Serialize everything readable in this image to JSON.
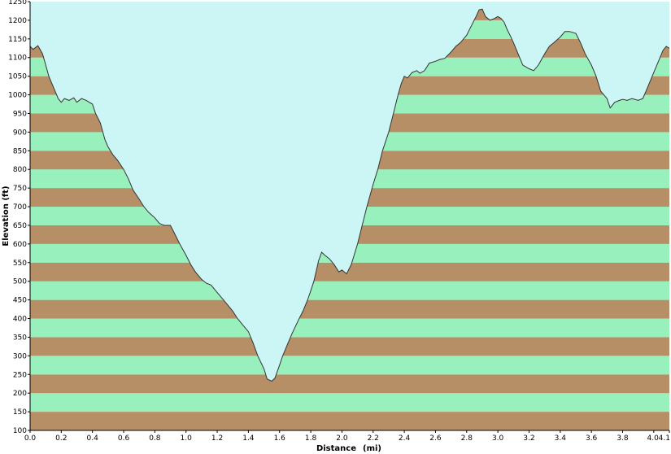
{
  "chart_data": {
    "type": "area",
    "title": "",
    "xlabel": "Distance",
    "xunit": "(mi)",
    "ylabel": "Elevation (ft)",
    "xlim": [
      0,
      4.1
    ],
    "ylim": [
      100,
      1250
    ],
    "x_ticks": [
      0,
      0.2,
      0.4,
      0.6,
      0.8,
      1.0,
      1.2,
      1.4,
      1.6,
      1.8,
      2.0,
      2.2,
      2.4,
      2.6,
      2.8,
      3.0,
      3.2,
      3.4,
      3.6,
      3.8,
      4.0,
      4.1
    ],
    "x_tick_labels": [
      "0.0",
      "0.2",
      "0.4",
      "0.6",
      "0.8",
      "1.0",
      "1.2",
      "1.4",
      "1.6",
      "1.8",
      "2.0",
      "2.2",
      "2.4",
      "2.6",
      "2.8",
      "3.0",
      "3.2",
      "3.4",
      "3.6",
      "3.8",
      "4.0",
      "4.1"
    ],
    "y_ticks": [
      100,
      150,
      200,
      250,
      300,
      350,
      400,
      450,
      500,
      550,
      600,
      650,
      700,
      750,
      800,
      850,
      900,
      950,
      1000,
      1050,
      1100,
      1150,
      1200,
      1250
    ],
    "y_tick_labels": [
      "100",
      "150",
      "200",
      "250",
      "300",
      "350",
      "400",
      "450",
      "500",
      "550",
      "600",
      "650",
      "700",
      "750",
      "800",
      "850",
      "900",
      "950",
      "1000",
      "1050",
      "1100",
      "1150",
      "1200",
      "1250"
    ],
    "grid": false,
    "colors": {
      "sky": "#ccf5f5",
      "band_light": "#98f0bc",
      "band_dark": "#b78f66",
      "line": "#333333"
    },
    "series": [
      {
        "x": [
          0.0,
          0.02,
          0.05,
          0.08,
          0.1,
          0.12,
          0.15,
          0.18,
          0.2,
          0.22,
          0.25,
          0.28,
          0.3,
          0.33,
          0.36,
          0.4,
          0.42,
          0.45,
          0.48,
          0.5,
          0.53,
          0.56,
          0.6,
          0.63,
          0.66,
          0.7,
          0.73,
          0.76,
          0.8,
          0.83,
          0.86,
          0.9,
          0.93,
          0.96,
          1.0,
          1.03,
          1.06,
          1.1,
          1.13,
          1.16,
          1.2,
          1.23,
          1.26,
          1.3,
          1.33,
          1.36,
          1.4,
          1.43,
          1.46,
          1.5,
          1.52,
          1.55,
          1.57,
          1.6,
          1.62,
          1.65,
          1.68,
          1.72,
          1.75,
          1.78,
          1.8,
          1.82,
          1.85,
          1.87,
          1.89,
          1.92,
          1.95,
          1.98,
          2.0,
          2.03,
          2.06,
          2.1,
          2.13,
          2.16,
          2.2,
          2.23,
          2.26,
          2.3,
          2.33,
          2.36,
          2.38,
          2.4,
          2.42,
          2.45,
          2.48,
          2.5,
          2.53,
          2.56,
          2.6,
          2.63,
          2.66,
          2.7,
          2.73,
          2.76,
          2.8,
          2.83,
          2.86,
          2.88,
          2.9,
          2.92,
          2.95,
          2.98,
          3.0,
          3.02,
          3.04,
          3.06,
          3.08,
          3.1,
          3.13,
          3.16,
          3.2,
          3.23,
          3.26,
          3.3,
          3.33,
          3.36,
          3.4,
          3.43,
          3.46,
          3.5,
          3.53,
          3.56,
          3.6,
          3.63,
          3.66,
          3.7,
          3.72,
          3.75,
          3.78,
          3.8,
          3.83,
          3.86,
          3.9,
          3.93,
          3.96,
          4.0,
          4.03,
          4.06,
          4.08,
          4.1
        ],
        "y": [
          1130,
          1122,
          1132,
          1110,
          1080,
          1050,
          1020,
          990,
          980,
          990,
          985,
          992,
          980,
          990,
          985,
          975,
          950,
          925,
          880,
          860,
          840,
          825,
          800,
          775,
          745,
          720,
          700,
          685,
          670,
          655,
          650,
          650,
          625,
          600,
          570,
          545,
          525,
          505,
          495,
          490,
          470,
          455,
          440,
          420,
          400,
          385,
          365,
          335,
          300,
          265,
          238,
          232,
          240,
          275,
          300,
          330,
          360,
          395,
          420,
          450,
          475,
          500,
          555,
          578,
          570,
          560,
          545,
          525,
          530,
          520,
          545,
          600,
          650,
          700,
          760,
          800,
          850,
          900,
          950,
          1000,
          1030,
          1050,
          1045,
          1060,
          1065,
          1058,
          1065,
          1085,
          1090,
          1095,
          1098,
          1115,
          1130,
          1140,
          1160,
          1185,
          1210,
          1228,
          1230,
          1210,
          1200,
          1205,
          1210,
          1205,
          1195,
          1175,
          1158,
          1140,
          1110,
          1080,
          1070,
          1065,
          1080,
          1110,
          1130,
          1140,
          1155,
          1170,
          1170,
          1165,
          1140,
          1110,
          1080,
          1050,
          1010,
          990,
          965,
          980,
          985,
          988,
          985,
          990,
          985,
          990,
          1020,
          1060,
          1090,
          1120,
          1130,
          1125
        ]
      }
    ]
  }
}
